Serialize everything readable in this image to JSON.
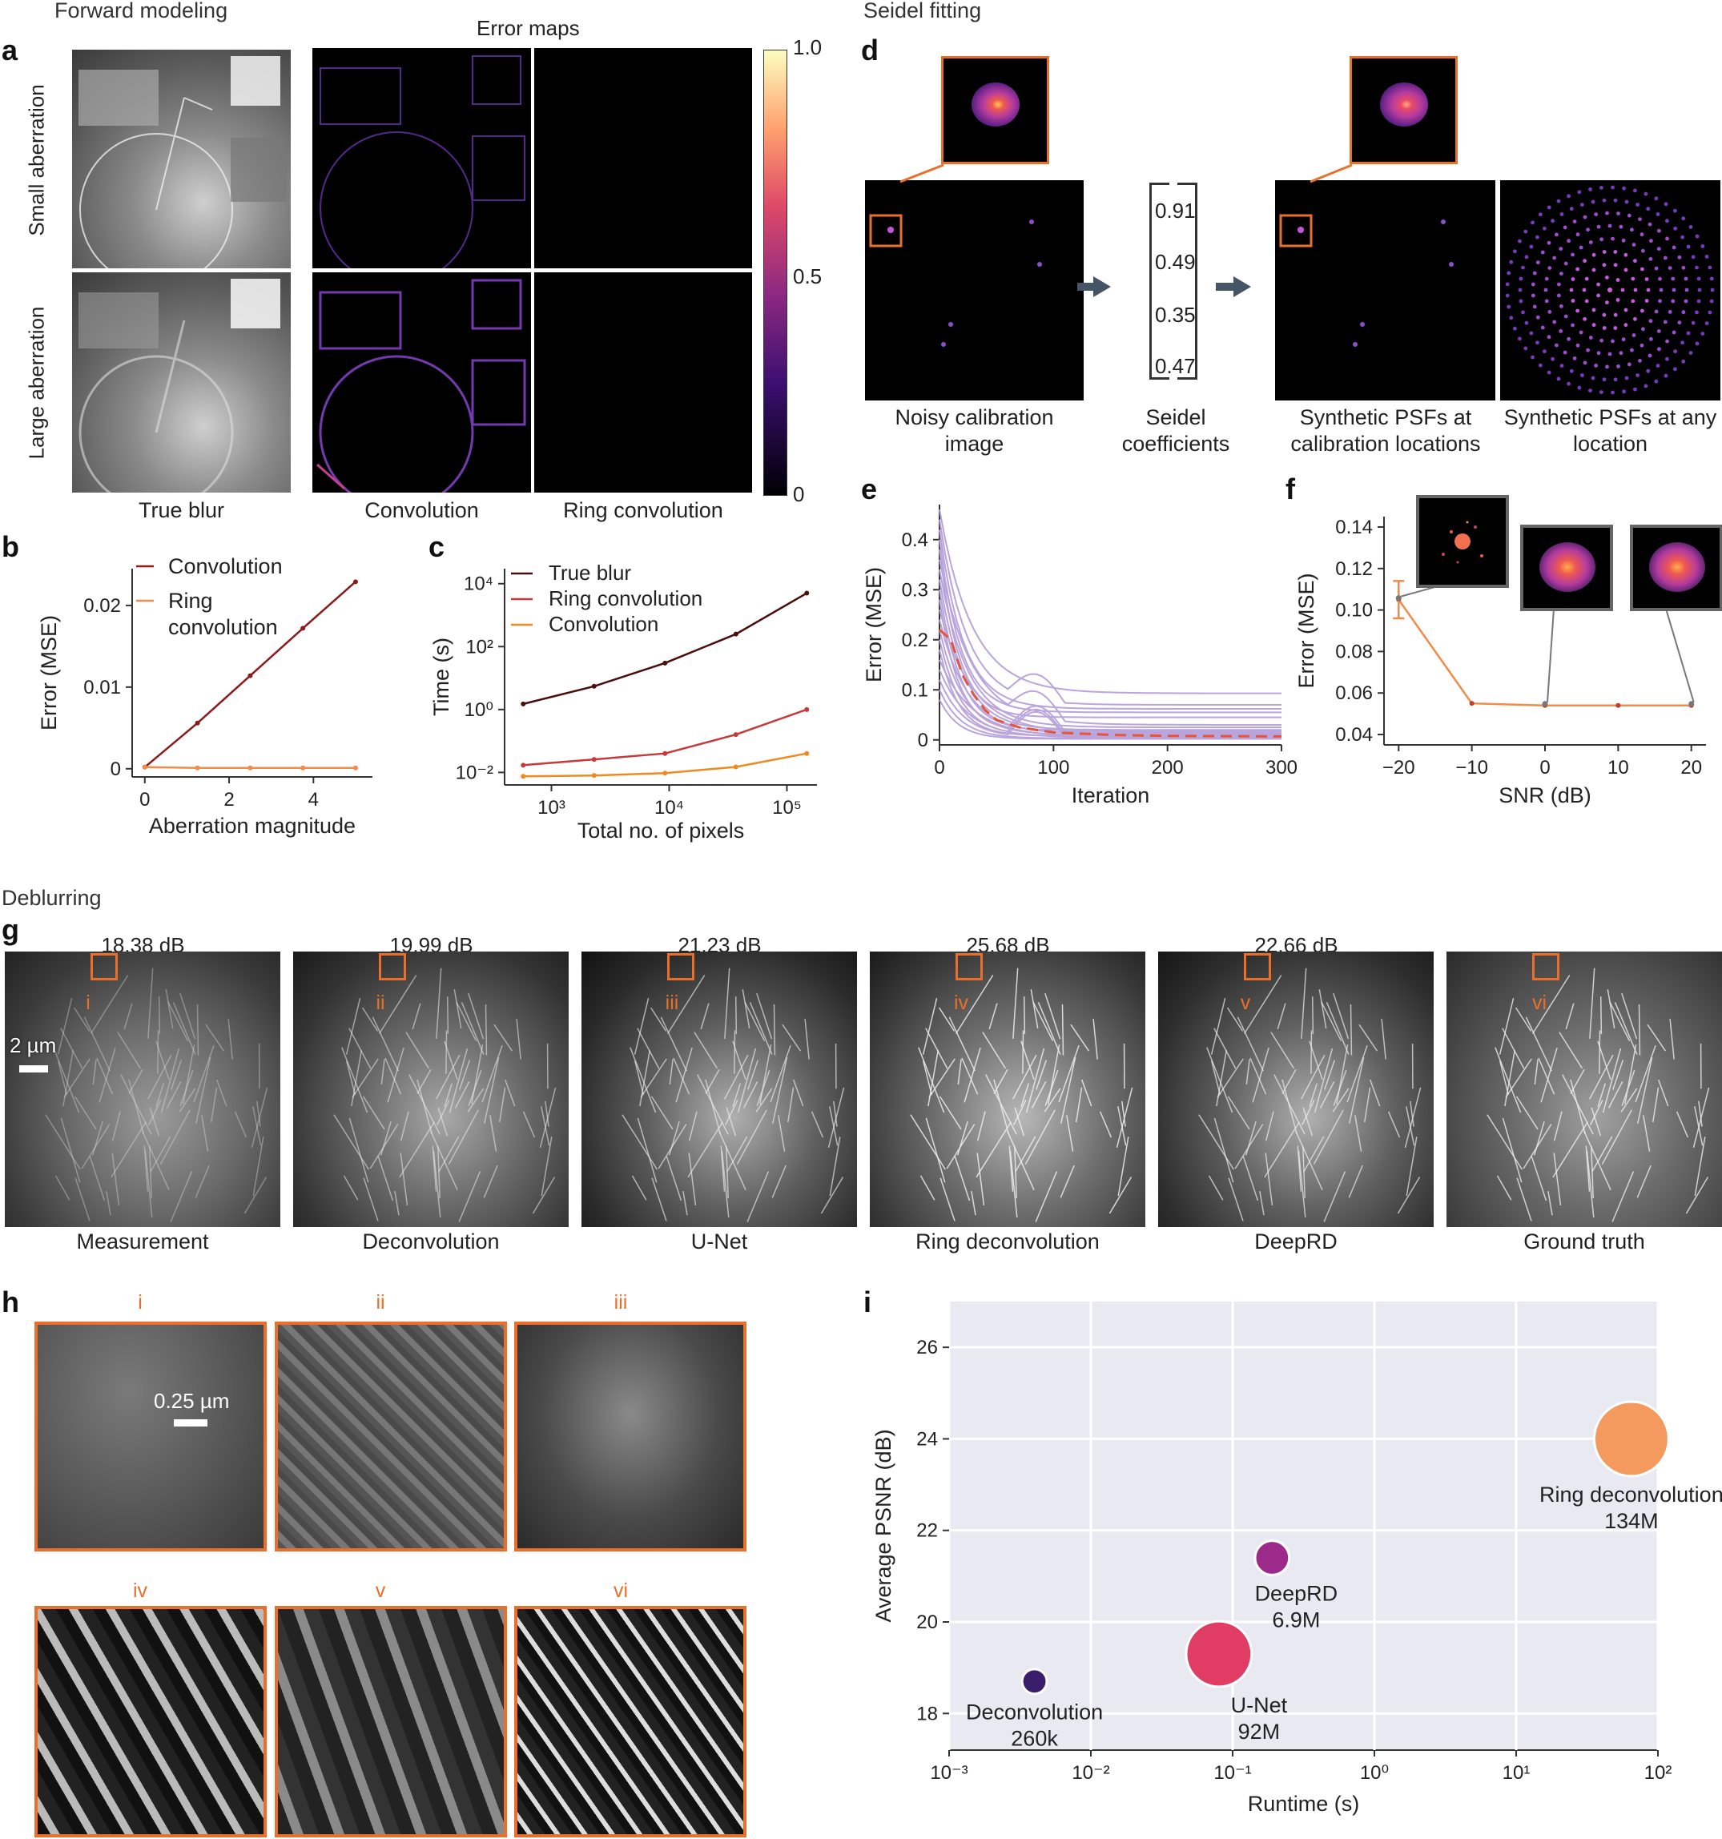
{
  "sections": {
    "forward": "Forward modeling",
    "seidel": "Seidel fitting",
    "deblurring": "Deblurring"
  },
  "panel_labels": {
    "a": "a",
    "b": "b",
    "c": "c",
    "d": "d",
    "e": "e",
    "f": "f",
    "g": "g",
    "h": "h",
    "i": "i"
  },
  "panel_a": {
    "title_error_maps": "Error maps",
    "row_small": "Small aberration",
    "row_large": "Large aberration",
    "col_true": "True blur",
    "col_conv": "Convolution",
    "col_ring": "Ring convolution",
    "colorbar_ticks": [
      "1.0",
      "0.5",
      "0"
    ]
  },
  "panel_d": {
    "coefficients": [
      "0.91",
      "0.49",
      "0.35",
      "0.47"
    ],
    "cap_noisy": "Noisy calibration image",
    "cap_seidel": "Seidel coefficients",
    "cap_synth_cal": "Synthetic PSFs at calibration locations",
    "cap_synth_any": "Synthetic PSFs at any location"
  },
  "panel_g": {
    "scalebar": "2 µm",
    "psnr": [
      "18.38 dB",
      "19.99 dB",
      "21.23 dB",
      "25.68 dB",
      "22.66 dB",
      ""
    ],
    "captions": [
      "Measurement",
      "Deconvolution",
      "U-Net",
      "Ring deconvolution",
      "DeepRD",
      "Ground truth"
    ],
    "roman": [
      "i",
      "ii",
      "iii",
      "iv",
      "v",
      "vi"
    ]
  },
  "panel_h": {
    "scalebar": "0.25 µm",
    "roman": [
      "i",
      "ii",
      "iii",
      "iv",
      "v",
      "vi"
    ]
  },
  "chart_data": [
    {
      "id": "b",
      "type": "line",
      "xlabel": "Aberration magnitude",
      "ylabel": "Error (MSE)",
      "xlim": [
        -0.3,
        5.4
      ],
      "ylim": [
        -0.001,
        0.0245
      ],
      "xticks": [
        0,
        2,
        4
      ],
      "yticks": [
        0,
        0.01,
        0.02
      ],
      "ytick_labels": [
        "0",
        "0.01",
        "0.02"
      ],
      "legend": "top-left",
      "series": [
        {
          "name": "Convolution",
          "color": "#8b1a1a",
          "x": [
            0,
            1.25,
            2.5,
            3.75,
            5.0
          ],
          "y": [
            0.0002,
            0.0056,
            0.0114,
            0.0172,
            0.0229
          ]
        },
        {
          "name": "Ring convolution",
          "color": "#f28a4a",
          "x": [
            0,
            1.25,
            2.5,
            3.75,
            5.0
          ],
          "y": [
            0.0002,
            0.0001,
            0.0001,
            0.0001,
            0.0001
          ]
        }
      ],
      "legend_labels": [
        "Convolution",
        "Ring",
        "convolution"
      ]
    },
    {
      "id": "c",
      "type": "line",
      "xscale": "log",
      "yscale": "log",
      "xlabel": "Total no. of pixels",
      "ylabel": "Time (s)",
      "xlim": [
        400,
        180000
      ],
      "ylim": [
        0.004,
        30000
      ],
      "xticks": [
        1000,
        10000,
        100000
      ],
      "xtick_labels": [
        "10³",
        "10⁴",
        "10⁵"
      ],
      "yticks": [
        0.01,
        1,
        100,
        10000
      ],
      "ytick_labels": [
        "10⁻²",
        "10⁰",
        "10²",
        "10⁴"
      ],
      "legend": "top-left",
      "series": [
        {
          "name": "True blur",
          "color": "#4a0d0d",
          "x": [
            576,
            2304,
            9216,
            36864,
            147456
          ],
          "y": [
            1.5,
            5.5,
            30,
            250,
            5000
          ]
        },
        {
          "name": "Ring convolution",
          "color": "#c73a3a",
          "x": [
            576,
            2304,
            9216,
            36864,
            147456
          ],
          "y": [
            0.017,
            0.026,
            0.04,
            0.16,
            1.0
          ]
        },
        {
          "name": "Convolution",
          "color": "#f08a20",
          "x": [
            576,
            2304,
            9216,
            36864,
            147456
          ],
          "y": [
            0.0075,
            0.008,
            0.0095,
            0.015,
            0.04
          ]
        }
      ]
    },
    {
      "id": "e",
      "type": "line",
      "xlabel": "Iteration",
      "ylabel": "Error (MSE)",
      "xlim": [
        0,
        300
      ],
      "ylim": [
        -0.01,
        0.47
      ],
      "xticks": [
        0,
        100,
        200,
        300
      ],
      "yticks": [
        0,
        0.1,
        0.2,
        0.3,
        0.4
      ],
      "ytick_labels": [
        "0",
        "0.1",
        "0.2",
        "0.3",
        "0.4"
      ],
      "mean": {
        "color": "#e8543a",
        "x": [
          0,
          10,
          20,
          30,
          40,
          50,
          70,
          100,
          150,
          200,
          300
        ],
        "y": [
          0.22,
          0.2,
          0.13,
          0.09,
          0.06,
          0.04,
          0.025,
          0.015,
          0.01,
          0.008,
          0.007
        ]
      },
      "traces_color": "#b9a4dc",
      "traces": [
        {
          "start": 0.46,
          "end": 0.093
        },
        {
          "start": 0.44,
          "end": 0.07
        },
        {
          "start": 0.42,
          "end": 0.062
        },
        {
          "start": 0.4,
          "end": 0.055
        },
        {
          "start": 0.38,
          "end": 0.045
        },
        {
          "start": 0.36,
          "end": 0.03
        },
        {
          "start": 0.34,
          "end": 0.025
        },
        {
          "start": 0.32,
          "end": 0.02
        },
        {
          "start": 0.3,
          "end": 0.018
        },
        {
          "start": 0.28,
          "end": 0.016
        },
        {
          "start": 0.26,
          "end": 0.014
        },
        {
          "start": 0.24,
          "end": 0.012
        },
        {
          "start": 0.22,
          "end": 0.01
        },
        {
          "start": 0.2,
          "end": 0.009
        },
        {
          "start": 0.18,
          "end": 0.008
        },
        {
          "start": 0.16,
          "end": 0.006
        },
        {
          "start": 0.14,
          "end": 0.005
        },
        {
          "start": 0.12,
          "end": 0.004
        },
        {
          "start": 0.1,
          "end": 0.003
        },
        {
          "start": 0.08,
          "end": 0.002
        }
      ]
    },
    {
      "id": "f",
      "type": "line",
      "xlabel": "SNR (dB)",
      "ylabel": "Error (MSE)",
      "xlim": [
        -22,
        22
      ],
      "ylim": [
        0.035,
        0.145
      ],
      "xticks": [
        -20,
        -10,
        0,
        10,
        20
      ],
      "xtick_labels": [
        "−20",
        "−10",
        "0",
        "10",
        "20"
      ],
      "yticks": [
        0.04,
        0.06,
        0.08,
        0.1,
        0.12,
        0.14
      ],
      "ytick_labels": [
        "0.04",
        "0.06",
        "0.08",
        "0.10",
        "0.12",
        "0.14"
      ],
      "series": [
        {
          "color": "#f28a4a",
          "x": [
            -20,
            -10,
            0,
            10,
            20
          ],
          "y": [
            0.105,
            0.055,
            0.054,
            0.054,
            0.054
          ],
          "err": [
            0.009,
            0,
            0,
            0,
            0
          ]
        }
      ]
    },
    {
      "id": "i",
      "type": "scatter",
      "xscale": "log",
      "xlabel": "Runtime (s)",
      "ylabel": "Average PSNR (dB)",
      "xlim": [
        0.001,
        100
      ],
      "ylim": [
        17.2,
        27.0
      ],
      "xticks": [
        0.001,
        0.01,
        0.1,
        1,
        10,
        100
      ],
      "xtick_labels": [
        "10⁻³",
        "10⁻²",
        "10⁻¹",
        "10⁰",
        "10¹",
        "10²"
      ],
      "yticks": [
        18,
        20,
        22,
        24,
        26
      ],
      "ytick_labels": [
        "18",
        "20",
        "22",
        "24",
        "26"
      ],
      "grid": true,
      "background": "#e9e9f2",
      "points": [
        {
          "label": "Deconvolution",
          "params": "260k",
          "x": 0.004,
          "y": 18.7,
          "color": "#3b1e6b",
          "size_m": 0.26
        },
        {
          "label": "U-Net",
          "params": "92M",
          "x": 0.08,
          "y": 19.3,
          "color": "#e03c64",
          "size_m": 92
        },
        {
          "label": "DeepRD",
          "params": "6.9M",
          "x": 0.19,
          "y": 21.4,
          "color": "#9b2a8b",
          "size_m": 6.9
        },
        {
          "label": "Ring deconvolution",
          "params": "134M",
          "x": 65,
          "y": 24.0,
          "color": "#f59a5e",
          "size_m": 134
        }
      ]
    }
  ]
}
